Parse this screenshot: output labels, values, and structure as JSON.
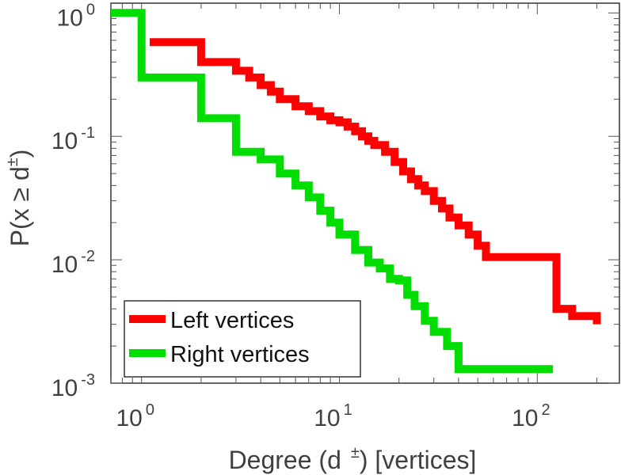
{
  "chart_data": {
    "type": "line",
    "step": true,
    "xscale": "log",
    "yscale": "log",
    "xlim": [
      0.7,
      260
    ],
    "ylim": [
      0.001,
      1.2
    ],
    "grid": false,
    "legend_position": "bottom-left",
    "xlabel": {
      "pre": "Degree (d",
      "sup": "±",
      "post": ") [vertices]"
    },
    "ylabel": {
      "pre": "P(x ≥ d",
      "sup": "±",
      "post": ")"
    },
    "xticks": [
      {
        "value": 1,
        "base": "10",
        "exp": "0"
      },
      {
        "value": 10,
        "base": "10",
        "exp": "1"
      },
      {
        "value": 100,
        "base": "10",
        "exp": "2"
      }
    ],
    "yticks": [
      {
        "value": 1,
        "base": "10",
        "exp": "0"
      },
      {
        "value": 0.1,
        "base": "10",
        "exp": "-1"
      },
      {
        "value": 0.01,
        "base": "10",
        "exp": "-2"
      },
      {
        "value": 0.001,
        "base": "10",
        "exp": "-3"
      }
    ],
    "series": [
      {
        "name": "Left vertices",
        "color": "#ff0000",
        "x": [
          1.1,
          2,
          3,
          3.5,
          4,
          4.5,
          5,
          6,
          7,
          8,
          9,
          10,
          11,
          12,
          13,
          14,
          15,
          17,
          19,
          21,
          23,
          25,
          27,
          30,
          33,
          36,
          40,
          45,
          50,
          55,
          120,
          125,
          150,
          200
        ],
        "y": [
          0.58,
          0.4,
          0.34,
          0.3,
          0.26,
          0.23,
          0.2,
          0.175,
          0.16,
          0.145,
          0.135,
          0.13,
          0.12,
          0.11,
          0.1,
          0.092,
          0.085,
          0.075,
          0.062,
          0.052,
          0.045,
          0.04,
          0.036,
          0.03,
          0.026,
          0.022,
          0.019,
          0.016,
          0.013,
          0.0105,
          0.0105,
          0.004,
          0.0035,
          0.003
        ]
      },
      {
        "name": "Right vertices",
        "color": "#00dd00",
        "x": [
          0.7,
          1,
          2,
          3,
          4,
          5,
          6,
          7,
          8,
          9,
          10,
          12,
          14,
          16,
          18,
          20,
          22,
          24,
          27,
          30,
          35,
          40,
          50,
          120
        ],
        "y": [
          1,
          0.3,
          0.14,
          0.075,
          0.065,
          0.05,
          0.04,
          0.032,
          0.025,
          0.02,
          0.016,
          0.012,
          0.0095,
          0.0085,
          0.007,
          0.0068,
          0.0052,
          0.0042,
          0.0032,
          0.0026,
          0.002,
          0.0013,
          0.0013,
          0.0013
        ]
      }
    ]
  }
}
